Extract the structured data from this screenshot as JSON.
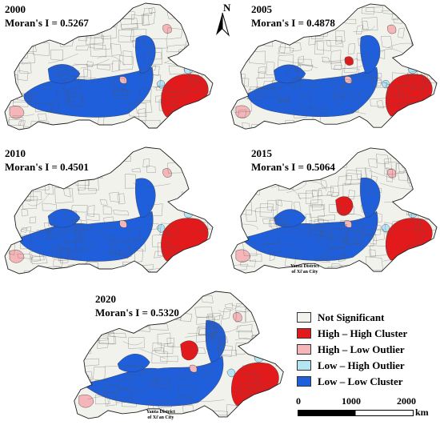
{
  "colors": {
    "not_significant": "#f2f2ed",
    "high_high": "#e31a1c",
    "high_low": "#f4b6b8",
    "low_high": "#b3e5f5",
    "low_low": "#1f5fdc",
    "boundary": "#555555"
  },
  "compass": {
    "letter": "N"
  },
  "panels": [
    {
      "year": "2000",
      "moran": "Moran's I = 0.5267",
      "annotation": ""
    },
    {
      "year": "2005",
      "moran": "Moran's I = 0.4878",
      "annotation": ""
    },
    {
      "year": "2010",
      "moran": "Moran's I = 0.4501",
      "annotation": ""
    },
    {
      "year": "2015",
      "moran": "Moran's I = 0.5064",
      "annotation": "Yanta District\nof Xi'an City"
    },
    {
      "year": "2020",
      "moran": "Moran's I = 0.5320",
      "annotation": "Yanta District\nof Xi'an City"
    }
  ],
  "legend": {
    "items": [
      {
        "label": "Not Significant",
        "color": "#f2f2ed"
      },
      {
        "label": "High – High Cluster",
        "color": "#e31a1c"
      },
      {
        "label": "High – Low Outlier",
        "color": "#f4b6b8"
      },
      {
        "label": "Low – High Outlier",
        "color": "#b3e5f5"
      },
      {
        "label": "Low – Low Cluster",
        "color": "#1f5fdc"
      }
    ]
  },
  "scale": {
    "ticks": [
      "0",
      "1000",
      "2000"
    ],
    "unit": "km"
  }
}
